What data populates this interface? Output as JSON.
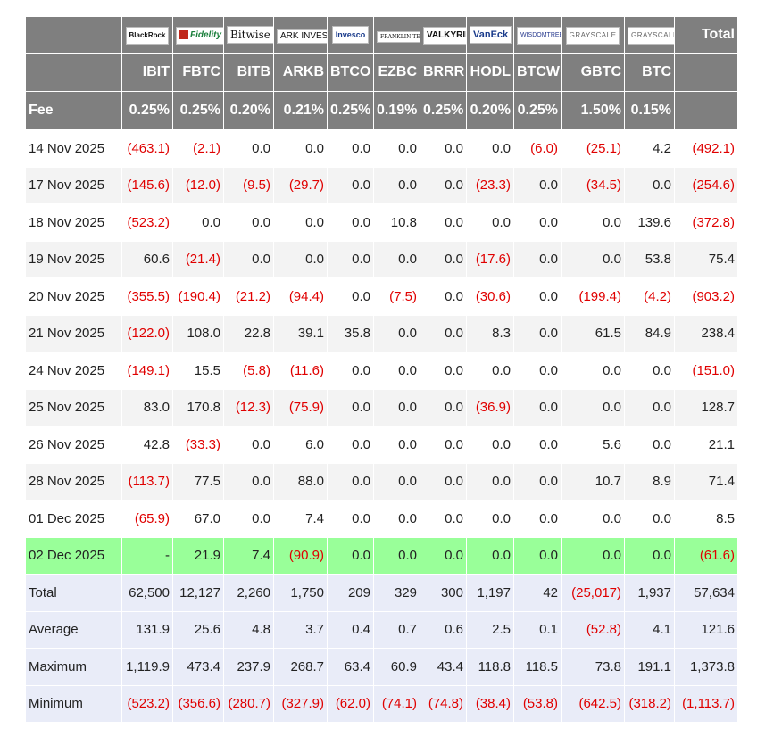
{
  "header": {
    "logos": [
      {
        "name": "blackrock-logo",
        "text": "BlackRock"
      },
      {
        "name": "fidelity-logo",
        "text": "Fidelity"
      },
      {
        "name": "bitwise-logo",
        "text": "Bitwise"
      },
      {
        "name": "ark-invest-logo",
        "text": "ARK INVEST"
      },
      {
        "name": "invesco-logo",
        "text": "Invesco"
      },
      {
        "name": "franklin-templeton-logo",
        "text": "FRANKLIN TEMPLETON"
      },
      {
        "name": "valkyrie-logo",
        "text": "VALKYRIE"
      },
      {
        "name": "vaneck-logo",
        "text": "VanEck"
      },
      {
        "name": "wisdomtree-logo",
        "text": "WISDOMTREE"
      },
      {
        "name": "grayscale-logo-gbtc",
        "text": "GRAYSCALE"
      },
      {
        "name": "grayscale-logo-btc",
        "text": "GRAYSCALE"
      }
    ],
    "total_label": "Total",
    "tickers": [
      "IBIT",
      "FBTC",
      "BITB",
      "ARKB",
      "BTCO",
      "EZBC",
      "BRRR",
      "HODL",
      "BTCW",
      "GBTC",
      "BTC"
    ],
    "fee_label": "Fee",
    "fees": [
      "0.25%",
      "0.25%",
      "0.20%",
      "0.21%",
      "0.25%",
      "0.19%",
      "0.25%",
      "0.20%",
      "0.25%",
      "1.50%",
      "0.15%"
    ]
  },
  "rows": [
    {
      "date": "14 Nov 2025",
      "values": [
        "(463.1)",
        "(2.1)",
        "0.0",
        "0.0",
        "0.0",
        "0.0",
        "0.0",
        "0.0",
        "(6.0)",
        "(25.1)",
        "4.2"
      ],
      "total": "(492.1)"
    },
    {
      "date": "17 Nov 2025",
      "values": [
        "(145.6)",
        "(12.0)",
        "(9.5)",
        "(29.7)",
        "0.0",
        "0.0",
        "0.0",
        "(23.3)",
        "0.0",
        "(34.5)",
        "0.0"
      ],
      "total": "(254.6)"
    },
    {
      "date": "18 Nov 2025",
      "values": [
        "(523.2)",
        "0.0",
        "0.0",
        "0.0",
        "0.0",
        "10.8",
        "0.0",
        "0.0",
        "0.0",
        "0.0",
        "139.6"
      ],
      "total": "(372.8)"
    },
    {
      "date": "19 Nov 2025",
      "values": [
        "60.6",
        "(21.4)",
        "0.0",
        "0.0",
        "0.0",
        "0.0",
        "0.0",
        "(17.6)",
        "0.0",
        "0.0",
        "53.8"
      ],
      "total": "75.4"
    },
    {
      "date": "20 Nov 2025",
      "values": [
        "(355.5)",
        "(190.4)",
        "(21.2)",
        "(94.4)",
        "0.0",
        "(7.5)",
        "0.0",
        "(30.6)",
        "0.0",
        "(199.4)",
        "(4.2)"
      ],
      "total": "(903.2)"
    },
    {
      "date": "21 Nov 2025",
      "values": [
        "(122.0)",
        "108.0",
        "22.8",
        "39.1",
        "35.8",
        "0.0",
        "0.0",
        "8.3",
        "0.0",
        "61.5",
        "84.9"
      ],
      "total": "238.4"
    },
    {
      "date": "24 Nov 2025",
      "values": [
        "(149.1)",
        "15.5",
        "(5.8)",
        "(11.6)",
        "0.0",
        "0.0",
        "0.0",
        "0.0",
        "0.0",
        "0.0",
        "0.0"
      ],
      "total": "(151.0)"
    },
    {
      "date": "25 Nov 2025",
      "values": [
        "83.0",
        "170.8",
        "(12.3)",
        "(75.9)",
        "0.0",
        "0.0",
        "0.0",
        "(36.9)",
        "0.0",
        "0.0",
        "0.0"
      ],
      "total": "128.7"
    },
    {
      "date": "26 Nov 2025",
      "values": [
        "42.8",
        "(33.3)",
        "0.0",
        "6.0",
        "0.0",
        "0.0",
        "0.0",
        "0.0",
        "0.0",
        "5.6",
        "0.0"
      ],
      "total": "21.1"
    },
    {
      "date": "28 Nov 2025",
      "values": [
        "(113.7)",
        "77.5",
        "0.0",
        "88.0",
        "0.0",
        "0.0",
        "0.0",
        "0.0",
        "0.0",
        "10.7",
        "8.9"
      ],
      "total": "71.4"
    },
    {
      "date": "01 Dec 2025",
      "values": [
        "(65.9)",
        "67.0",
        "0.0",
        "7.4",
        "0.0",
        "0.0",
        "0.0",
        "0.0",
        "0.0",
        "0.0",
        "0.0"
      ],
      "total": "8.5"
    },
    {
      "date": "02 Dec 2025",
      "values": [
        "-",
        "21.9",
        "7.4",
        "(90.9)",
        "0.0",
        "0.0",
        "0.0",
        "0.0",
        "0.0",
        "0.0",
        "0.0"
      ],
      "total": "(61.6)",
      "highlight": true
    }
  ],
  "stats": [
    {
      "label": "Total",
      "values": [
        "62,500",
        "12,127",
        "2,260",
        "1,750",
        "209",
        "329",
        "300",
        "1,197",
        "42",
        "(25,017)",
        "1,937"
      ],
      "total": "57,634"
    },
    {
      "label": "Average",
      "values": [
        "131.9",
        "25.6",
        "4.8",
        "3.7",
        "0.4",
        "0.7",
        "0.6",
        "2.5",
        "0.1",
        "(52.8)",
        "4.1"
      ],
      "total": "121.6"
    },
    {
      "label": "Maximum",
      "values": [
        "1,119.9",
        "473.4",
        "237.9",
        "268.7",
        "63.4",
        "60.9",
        "43.4",
        "118.8",
        "118.5",
        "73.8",
        "191.1"
      ],
      "total": "1,373.8"
    },
    {
      "label": "Minimum",
      "values": [
        "(523.2)",
        "(356.6)",
        "(280.7)",
        "(327.9)",
        "(62.0)",
        "(74.1)",
        "(74.8)",
        "(38.4)",
        "(53.8)",
        "(642.5)",
        "(318.2)"
      ],
      "total": "(1,113.7)"
    }
  ],
  "colors": {
    "header_bg": "#7f7f7f",
    "negative": "#e00000",
    "highlight_row": "#99ff99",
    "stats_bg": "#e9ecf8",
    "alt_row": "#f3f3f3"
  }
}
